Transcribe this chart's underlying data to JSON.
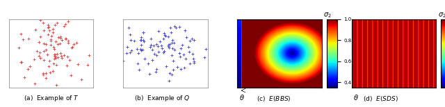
{
  "fig_width": 6.4,
  "fig_height": 1.55,
  "dpi": 100,
  "scatter_T_color": "#e05050",
  "scatter_Q_color": "#5050e0",
  "caption_T": "(a)  Example of $T$",
  "caption_Q": "(b)  Example of $Q$",
  "caption_BBS": "(c)  $E(BBS)$",
  "caption_SDS": "(d)  $E(SDS)$",
  "colorbar_ticks": [
    0.4,
    0.6,
    0.8,
    1.0
  ],
  "sigma2_label": "$\\sigma_2$",
  "theta_label": "$\\theta$"
}
